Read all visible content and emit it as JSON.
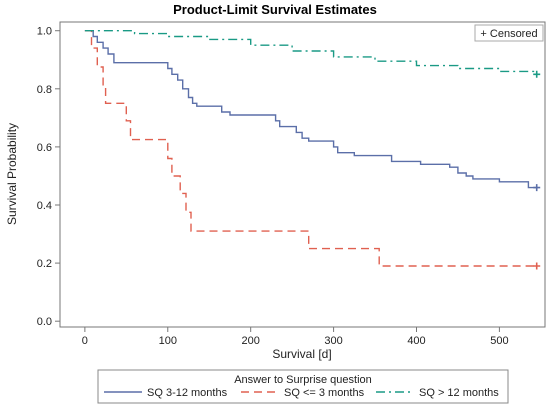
{
  "chart_data": {
    "type": "line",
    "step": true,
    "title": "Product-Limit Survival Estimates",
    "xlabel": "Survival [d]",
    "ylabel": "Survival Probability",
    "xlim": [
      -30,
      555
    ],
    "ylim": [
      -0.02,
      1.03
    ],
    "x_ticks": [
      0,
      100,
      200,
      300,
      400,
      500
    ],
    "y_ticks": [
      0.0,
      0.2,
      0.4,
      0.6,
      0.8,
      1.0
    ],
    "y_tick_labels": [
      "0.0",
      "0.2",
      "0.4",
      "0.6",
      "0.8",
      "1.0"
    ],
    "grid": false,
    "censored_legend": "+ Censored",
    "legend_title": "Answer to Surprise question",
    "legend_position": "bottom",
    "series": [
      {
        "name": "SQ 3-12 months",
        "color": "#5b6fa8",
        "dash": "solid",
        "censored": [
          [
            545,
            0.46
          ]
        ],
        "points": [
          [
            0,
            1.0
          ],
          [
            10,
            0.98
          ],
          [
            15,
            0.96
          ],
          [
            22,
            0.94
          ],
          [
            28,
            0.92
          ],
          [
            35,
            0.89
          ],
          [
            45,
            0.89
          ],
          [
            75,
            0.89
          ],
          [
            100,
            0.87
          ],
          [
            105,
            0.85
          ],
          [
            112,
            0.83
          ],
          [
            118,
            0.8
          ],
          [
            125,
            0.77
          ],
          [
            130,
            0.75
          ],
          [
            135,
            0.74
          ],
          [
            160,
            0.74
          ],
          [
            165,
            0.72
          ],
          [
            175,
            0.71
          ],
          [
            225,
            0.71
          ],
          [
            230,
            0.69
          ],
          [
            235,
            0.67
          ],
          [
            255,
            0.65
          ],
          [
            262,
            0.63
          ],
          [
            270,
            0.62
          ],
          [
            300,
            0.6
          ],
          [
            305,
            0.58
          ],
          [
            325,
            0.57
          ],
          [
            365,
            0.57
          ],
          [
            370,
            0.55
          ],
          [
            400,
            0.55
          ],
          [
            405,
            0.54
          ],
          [
            425,
            0.54
          ],
          [
            440,
            0.53
          ],
          [
            450,
            0.51
          ],
          [
            460,
            0.5
          ],
          [
            468,
            0.49
          ],
          [
            490,
            0.49
          ],
          [
            500,
            0.48
          ],
          [
            530,
            0.48
          ],
          [
            535,
            0.46
          ],
          [
            545,
            0.46
          ]
        ]
      },
      {
        "name": "SQ <= 3 months",
        "color": "#e06050",
        "dash": "long",
        "censored": [
          [
            545,
            0.19
          ]
        ],
        "points": [
          [
            0,
            1.0
          ],
          [
            8,
            0.94
          ],
          [
            15,
            0.875
          ],
          [
            22,
            0.81
          ],
          [
            25,
            0.75
          ],
          [
            45,
            0.75
          ],
          [
            50,
            0.69
          ],
          [
            55,
            0.625
          ],
          [
            80,
            0.625
          ],
          [
            100,
            0.56
          ],
          [
            105,
            0.5
          ],
          [
            115,
            0.44
          ],
          [
            122,
            0.375
          ],
          [
            128,
            0.31
          ],
          [
            145,
            0.31
          ],
          [
            270,
            0.31
          ],
          [
            270,
            0.25
          ],
          [
            350,
            0.25
          ],
          [
            355,
            0.19
          ],
          [
            545,
            0.19
          ]
        ]
      },
      {
        "name": "SQ > 12 months",
        "color": "#1a9a85",
        "dash": "dashdot",
        "censored": [
          [
            545,
            0.85
          ]
        ],
        "points": [
          [
            0,
            1.0
          ],
          [
            60,
            0.99
          ],
          [
            100,
            0.98
          ],
          [
            150,
            0.97
          ],
          [
            200,
            0.95
          ],
          [
            250,
            0.93
          ],
          [
            300,
            0.91
          ],
          [
            350,
            0.895
          ],
          [
            400,
            0.88
          ],
          [
            450,
            0.87
          ],
          [
            500,
            0.86
          ],
          [
            545,
            0.85
          ]
        ]
      }
    ]
  }
}
